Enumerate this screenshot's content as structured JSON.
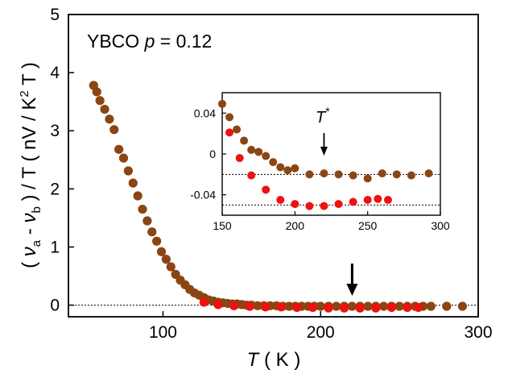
{
  "chart_data": [
    {
      "type": "scatter",
      "panel": "main",
      "annotation": {
        "material": "YBCO",
        "param": "p",
        "eq": " = 0.12"
      },
      "xlabel": {
        "symbol": "T",
        "unit": " ( K )"
      },
      "ylabel": {
        "open": "( ",
        "nu": "ν",
        "sub_a": "a",
        "minus": " - ",
        "sub_b": "b",
        "rest1": " ) / T ( nV / K",
        "sup": "2",
        "rest2": " T )"
      },
      "xlim": [
        40,
        300
      ],
      "ylim": [
        -0.2,
        5
      ],
      "xticks": [
        "100",
        "200",
        "300"
      ],
      "yticks": [
        "0",
        "1",
        "2",
        "3",
        "4",
        "5"
      ],
      "arrow_at_x": 220,
      "reference_line_y": 0,
      "colors": {
        "brown": "#8B4513",
        "red": "#EE1111"
      },
      "series": [
        {
          "color": "brown",
          "x": [
            56,
            58,
            60,
            63,
            66,
            69,
            72,
            75,
            78,
            81,
            84,
            87,
            90,
            93,
            96,
            99,
            102,
            105,
            108,
            111,
            114,
            117,
            120,
            123,
            126,
            129,
            132,
            135,
            138,
            141,
            144,
            147,
            150,
            153,
            156,
            160,
            164,
            168,
            172,
            176,
            180,
            184,
            188,
            192,
            196,
            200,
            205,
            210,
            215,
            220,
            225,
            230,
            235,
            240,
            245,
            250,
            255,
            260,
            265,
            270,
            280,
            290
          ],
          "y": [
            3.78,
            3.67,
            3.52,
            3.37,
            3.2,
            3.02,
            2.68,
            2.53,
            2.31,
            2.1,
            1.88,
            1.65,
            1.45,
            1.26,
            1.1,
            0.92,
            0.79,
            0.66,
            0.53,
            0.43,
            0.35,
            0.27,
            0.21,
            0.17,
            0.13,
            0.09,
            0.07,
            0.05,
            0.04,
            0.03,
            0.02,
            0.02,
            0.01,
            0.0,
            0.0,
            -0.01,
            -0.01,
            -0.01,
            -0.01,
            -0.02,
            -0.02,
            -0.02,
            -0.02,
            -0.02,
            -0.02,
            -0.02,
            -0.02,
            -0.02,
            -0.02,
            -0.02,
            -0.02,
            -0.02,
            -0.02,
            -0.02,
            -0.02,
            -0.02,
            -0.02,
            -0.02,
            -0.02,
            -0.02,
            -0.02,
            -0.02
          ]
        },
        {
          "color": "red",
          "x": [
            126,
            135,
            145,
            155,
            165,
            175,
            185,
            195,
            205,
            215,
            225,
            235,
            245,
            255,
            262
          ],
          "y": [
            0.05,
            0.01,
            -0.01,
            -0.02,
            -0.03,
            -0.03,
            -0.04,
            -0.04,
            -0.05,
            -0.05,
            -0.05,
            -0.05,
            -0.04,
            -0.04,
            -0.04
          ]
        }
      ]
    },
    {
      "type": "scatter",
      "panel": "inset",
      "annotation": {
        "symbol": "T",
        "sup": "*"
      },
      "xlim": [
        150,
        300
      ],
      "ylim": [
        -0.06,
        0.06
      ],
      "xticks": [
        "150",
        "200",
        "250",
        "300"
      ],
      "yticks": [
        "0.04",
        "0",
        "-0.04"
      ],
      "ytick_values": [
        0.04,
        0,
        -0.04
      ],
      "arrow_at_x": 220,
      "reference_lines_y": [
        -0.02,
        -0.05
      ],
      "series": [
        {
          "color": "brown",
          "x": [
            150,
            155,
            160,
            165,
            170,
            175,
            180,
            185,
            190,
            195,
            200,
            210,
            220,
            230,
            240,
            250,
            260,
            270,
            280,
            292
          ],
          "y": [
            0.049,
            0.036,
            0.024,
            0.013,
            0.004,
            0.002,
            -0.002,
            -0.008,
            -0.013,
            -0.016,
            -0.014,
            -0.02,
            -0.019,
            -0.02,
            -0.021,
            -0.024,
            -0.019,
            -0.02,
            -0.021,
            -0.019
          ]
        },
        {
          "color": "red",
          "x": [
            155,
            162,
            170,
            180,
            190,
            200,
            210,
            220,
            230,
            240,
            250,
            257,
            264
          ],
          "y": [
            0.021,
            -0.004,
            -0.021,
            -0.035,
            -0.045,
            -0.049,
            -0.051,
            -0.051,
            -0.049,
            -0.047,
            -0.045,
            -0.044,
            -0.045
          ]
        }
      ]
    }
  ]
}
